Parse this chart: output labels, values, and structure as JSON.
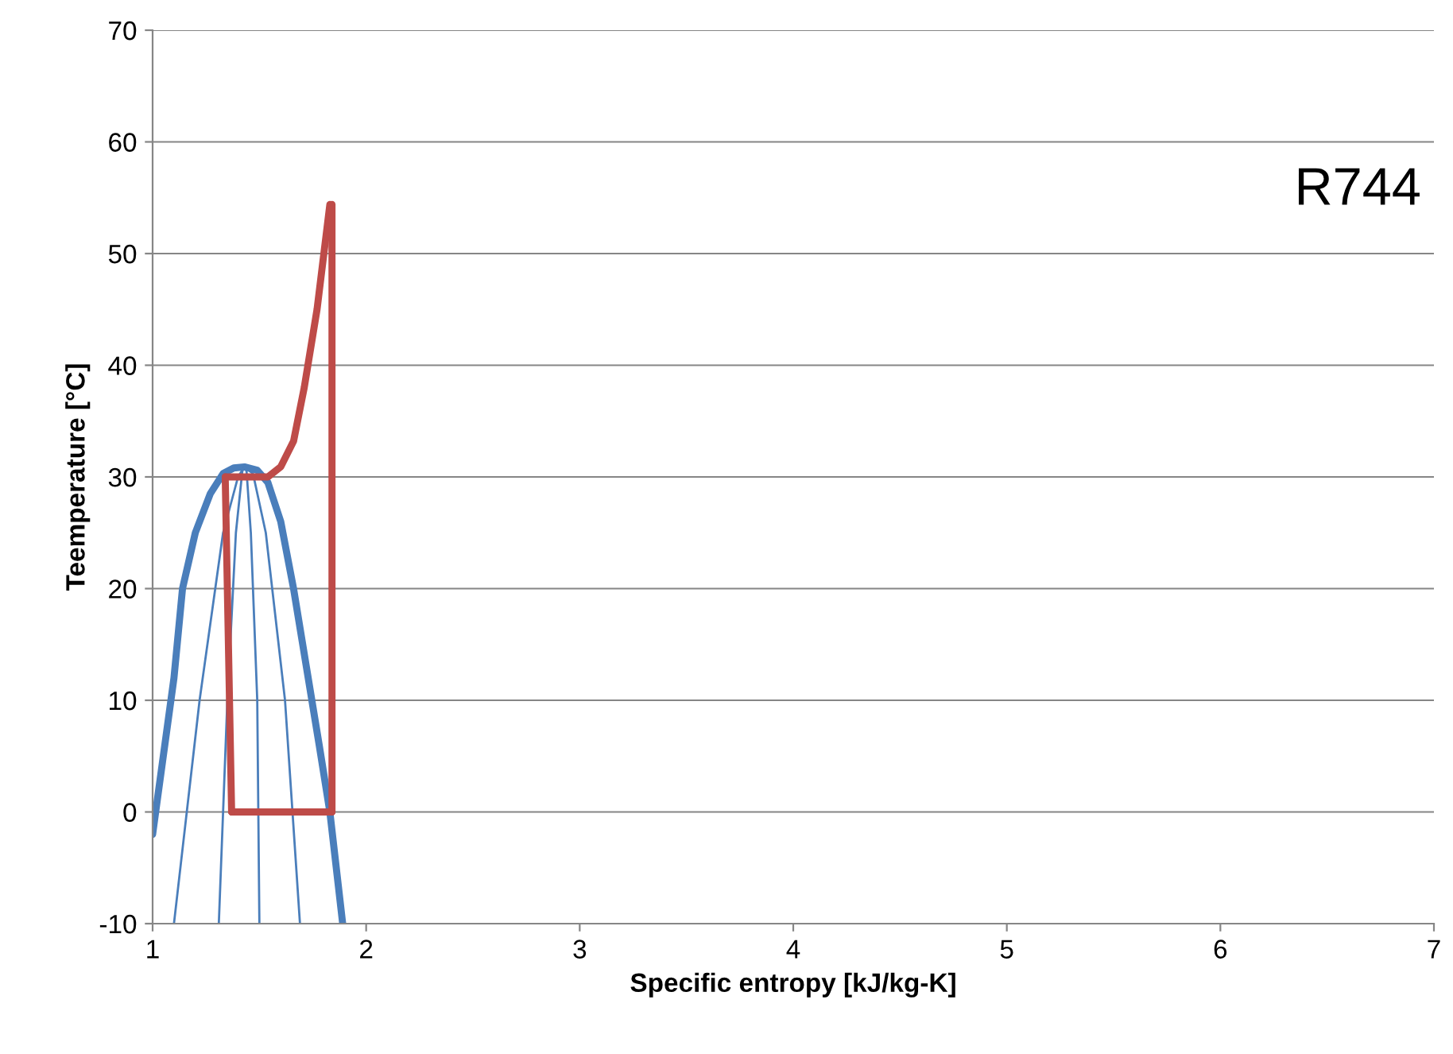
{
  "chart_data": {
    "type": "line",
    "xlabel": "Specific entropy [kJ/kg-K]",
    "ylabel": "Teemperature [°C]",
    "annotations": [
      "R744"
    ],
    "xlim": [
      1,
      7
    ],
    "xticks": [
      1,
      2,
      3,
      4,
      5,
      6,
      7
    ],
    "ylim": [
      -10,
      70
    ],
    "yticks": [
      -10,
      0,
      10,
      20,
      30,
      40,
      50,
      60,
      70
    ],
    "grid": "y",
    "legend": false,
    "series": [
      {
        "color": "#4a7ebb",
        "x": [
          1.0,
          1.05,
          1.1,
          1.14,
          1.2,
          1.27,
          1.33,
          1.38,
          1.43,
          1.49,
          1.54,
          1.6,
          1.66,
          1.72,
          1.78,
          1.83,
          1.86,
          1.89
        ],
        "values": [
          -2,
          5,
          12,
          20,
          25,
          28.5,
          30.3,
          30.8,
          30.9,
          30.6,
          29.5,
          26,
          20,
          13,
          6,
          0,
          -5,
          -10
        ]
      },
      {
        "color": "#4a7ebb",
        "x": [
          1.1,
          1.22,
          1.33,
          1.4,
          1.43
        ],
        "values": [
          -10,
          10,
          25,
          30,
          30.9
        ]
      },
      {
        "color": "#4a7ebb",
        "x": [
          1.31,
          1.35,
          1.39,
          1.42,
          1.43
        ],
        "values": [
          -10,
          10,
          25,
          30.5,
          30.9
        ]
      },
      {
        "color": "#4a7ebb",
        "x": [
          1.5,
          1.49,
          1.46,
          1.44,
          1.43
        ],
        "values": [
          -10,
          10,
          25,
          30.5,
          30.9
        ]
      },
      {
        "color": "#4a7ebb",
        "x": [
          1.69,
          1.62,
          1.53,
          1.47,
          1.43
        ],
        "values": [
          -10,
          10,
          25,
          30.3,
          30.9
        ]
      },
      {
        "color": "#be4b48",
        "x": [
          1.34,
          1.54,
          1.6,
          1.66,
          1.71,
          1.77,
          1.83
        ],
        "values": [
          30,
          30,
          30.9,
          33.2,
          38,
          45,
          54.4
        ]
      },
      {
        "color": "#be4b48",
        "x": [
          1.84,
          1.84
        ],
        "values": [
          54.4,
          0
        ]
      },
      {
        "color": "#be4b48",
        "x": [
          1.37,
          1.84
        ],
        "values": [
          0,
          0
        ]
      },
      {
        "color": "#be4b48",
        "x": [
          1.37,
          1.34
        ],
        "values": [
          0,
          30
        ]
      }
    ]
  }
}
